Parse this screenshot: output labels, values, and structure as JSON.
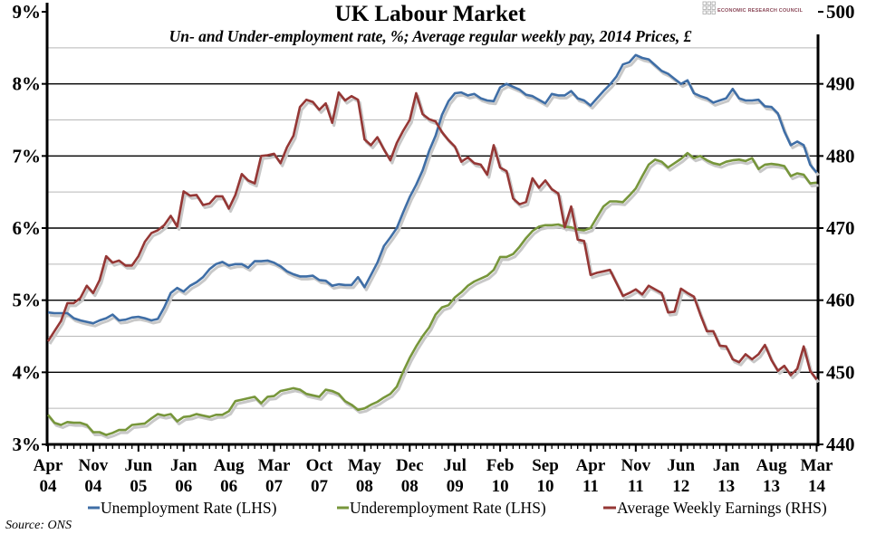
{
  "chart_data": {
    "type": "line",
    "title": "UK Labour Market",
    "subtitle": "Un- and Under-employment rate, %; Average regular weekly pay, 2014 Prices, £",
    "source": "Source: ONS",
    "logo_text": "ECONOMIC RESEARCH COUNCIL",
    "x_range": [
      "Apr 04",
      "Mar 14"
    ],
    "x_frequency": "monthly",
    "x_tick_labels": [
      "Apr 04",
      "Nov 04",
      "Jun 05",
      "Jan 06",
      "Aug 06",
      "Mar 07",
      "Oct 07",
      "May 08",
      "Dec 08",
      "Jul 09",
      "Feb 10",
      "Sep 10",
      "Apr 11",
      "Nov 11",
      "Jun 12",
      "Jan 13",
      "Aug 13",
      "Mar 14"
    ],
    "y_left": {
      "range": [
        3,
        9
      ],
      "tick_labels": [
        "3%",
        "4%",
        "5%",
        "6%",
        "7%",
        "8%",
        "9%"
      ],
      "ticks": [
        3,
        4,
        5,
        6,
        7,
        8,
        9
      ]
    },
    "y_right": {
      "range": [
        440,
        500
      ],
      "tick_labels": [
        "440",
        "450",
        "460",
        "470",
        "480",
        "490",
        "500"
      ],
      "ticks": [
        440,
        450,
        460,
        470,
        480,
        490,
        500
      ]
    },
    "grid": true,
    "legend_position": "bottom",
    "series": [
      {
        "name": "Unemployment Rate (LHS)",
        "axis": "left",
        "color": "#3f6ea6",
        "values": [
          4.83,
          4.82,
          4.82,
          4.82,
          4.75,
          4.72,
          4.7,
          4.68,
          4.72,
          4.75,
          4.8,
          4.72,
          4.73,
          4.76,
          4.77,
          4.75,
          4.72,
          4.74,
          4.9,
          5.1,
          5.17,
          5.12,
          5.2,
          5.25,
          5.32,
          5.43,
          5.5,
          5.53,
          5.48,
          5.5,
          5.5,
          5.45,
          5.54,
          5.54,
          5.55,
          5.52,
          5.47,
          5.4,
          5.36,
          5.33,
          5.33,
          5.34,
          5.28,
          5.27,
          5.2,
          5.22,
          5.21,
          5.21,
          5.32,
          5.18,
          5.35,
          5.52,
          5.75,
          5.87,
          6.0,
          6.22,
          6.43,
          6.6,
          6.8,
          7.07,
          7.28,
          7.57,
          7.76,
          7.87,
          7.88,
          7.84,
          7.86,
          7.8,
          7.77,
          7.76,
          7.95,
          8.0,
          7.96,
          7.92,
          7.85,
          7.83,
          7.78,
          7.73,
          7.86,
          7.84,
          7.84,
          7.9,
          7.8,
          7.77,
          7.7,
          7.8,
          7.9,
          7.99,
          8.1,
          8.27,
          8.3,
          8.4,
          8.36,
          8.34,
          8.26,
          8.18,
          8.14,
          8.07,
          8.0,
          8.05,
          7.87,
          7.83,
          7.8,
          7.74,
          7.77,
          7.8,
          7.93,
          7.8,
          7.77,
          7.77,
          7.78,
          7.69,
          7.68,
          7.59,
          7.34,
          7.15,
          7.2,
          7.15,
          6.88,
          6.77
        ]
      },
      {
        "name": "Underemployment Rate (LHS)",
        "axis": "left",
        "color": "#77963b",
        "values": [
          3.41,
          3.3,
          3.27,
          3.31,
          3.3,
          3.3,
          3.27,
          3.17,
          3.17,
          3.13,
          3.16,
          3.2,
          3.2,
          3.27,
          3.28,
          3.29,
          3.36,
          3.42,
          3.4,
          3.42,
          3.32,
          3.38,
          3.39,
          3.42,
          3.4,
          3.38,
          3.41,
          3.41,
          3.46,
          3.6,
          3.62,
          3.64,
          3.66,
          3.57,
          3.66,
          3.67,
          3.74,
          3.76,
          3.78,
          3.76,
          3.7,
          3.68,
          3.66,
          3.76,
          3.74,
          3.7,
          3.6,
          3.55,
          3.48,
          3.5,
          3.55,
          3.59,
          3.65,
          3.7,
          3.8,
          4.01,
          4.2,
          4.36,
          4.5,
          4.62,
          4.8,
          4.9,
          4.93,
          5.04,
          5.11,
          5.2,
          5.26,
          5.3,
          5.34,
          5.42,
          5.6,
          5.6,
          5.64,
          5.74,
          5.86,
          5.96,
          6.02,
          6.04,
          6.04,
          6.05,
          6.02,
          6.01,
          5.98,
          5.97,
          6.0,
          6.15,
          6.3,
          6.37,
          6.37,
          6.36,
          6.45,
          6.55,
          6.72,
          6.88,
          6.95,
          6.92,
          6.84,
          6.9,
          6.96,
          7.04,
          6.97,
          7.0,
          6.94,
          6.9,
          6.88,
          6.92,
          6.94,
          6.95,
          6.93,
          6.97,
          6.82,
          6.88,
          6.89,
          6.88,
          6.86,
          6.72,
          6.76,
          6.74,
          6.62,
          6.63
        ]
      },
      {
        "name": "Average Weekly Earnings (RHS)",
        "axis": "right",
        "color": "#953735",
        "values": [
          454.3,
          455.7,
          457.1,
          459.6,
          459.6,
          460.3,
          462,
          461,
          462.8,
          466.1,
          465.2,
          465.5,
          464.8,
          464.8,
          466.1,
          468.1,
          469.3,
          469.7,
          470.4,
          471.7,
          470.2,
          475.1,
          474.5,
          474.6,
          473.2,
          473.4,
          474.4,
          474.4,
          472.7,
          474.6,
          477.5,
          476.6,
          476.2,
          480.0,
          480.1,
          480.3,
          479.0,
          481.2,
          482.8,
          486.8,
          487.8,
          487.5,
          486.4,
          487.3,
          484.6,
          488.8,
          487.7,
          488.3,
          487.8,
          482.3,
          481.5,
          482.6,
          480.9,
          479.4,
          481.8,
          483.5,
          485,
          488.7,
          485.8,
          485.1,
          484.8,
          483.3,
          482.2,
          481.3,
          479.2,
          479.8,
          479,
          478.8,
          477.4,
          481.5,
          478.4,
          477.9,
          474.1,
          473.3,
          473.6,
          476.9,
          475.6,
          476.6,
          475.4,
          474.8,
          470.1,
          473,
          468.4,
          468.2,
          463.5,
          463.8,
          464,
          464.2,
          462.4,
          460.6,
          461,
          461.5,
          460.8,
          462,
          461.5,
          461,
          458.3,
          458.4,
          461.6,
          461,
          460.5,
          458,
          455.7,
          455.7,
          453.7,
          453.6,
          451.8,
          451.4,
          452.5,
          451.8,
          452.5,
          453.8,
          451.7,
          450.2,
          450.9,
          449.6,
          450.5,
          453.6,
          450.2,
          449.0
        ]
      }
    ]
  }
}
